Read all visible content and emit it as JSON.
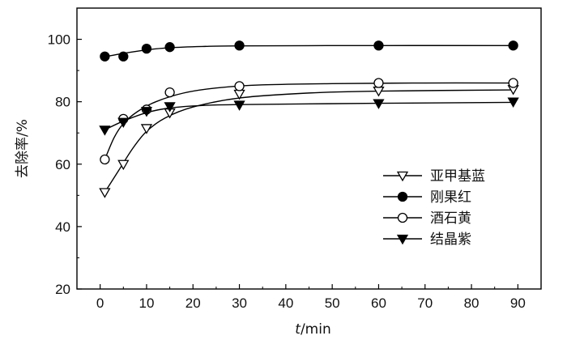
{
  "chart_data": {
    "type": "line",
    "xlabel": {
      "var": "t",
      "unit": "/min"
    },
    "ylabel": "去除率/%",
    "xlim": [
      -5,
      95
    ],
    "ylim": [
      20,
      110
    ],
    "xticks": [
      0,
      10,
      20,
      30,
      40,
      50,
      60,
      70,
      80,
      90
    ],
    "yticks": [
      20,
      40,
      60,
      80,
      100
    ],
    "grid": false,
    "legend_position": "center-right",
    "series": [
      {
        "name": "亚甲基蓝",
        "marker": "triangle-down-open",
        "x": [
          1,
          5,
          10,
          15,
          30,
          60,
          89
        ],
        "y": [
          51,
          60,
          71.5,
          76.5,
          82.5,
          83.5,
          84
        ],
        "fit": [
          [
            1,
            51
          ],
          [
            4,
            58
          ],
          [
            7,
            65
          ],
          [
            10,
            70.5
          ],
          [
            14,
            74.8
          ],
          [
            20,
            78.3
          ],
          [
            30,
            81.2
          ],
          [
            45,
            82.8
          ],
          [
            60,
            83.4
          ],
          [
            89,
            83.8
          ]
        ]
      },
      {
        "name": "刚果红",
        "marker": "circle-filled",
        "x": [
          1,
          5,
          10,
          15,
          30,
          60,
          89
        ],
        "y": [
          94.5,
          94.5,
          97,
          97.5,
          98,
          98,
          98
        ],
        "fit": [
          [
            1,
            94.4
          ],
          [
            5,
            95.5
          ],
          [
            10,
            96.6
          ],
          [
            15,
            97.3
          ],
          [
            22,
            97.7
          ],
          [
            30,
            97.9
          ],
          [
            60,
            98
          ],
          [
            89,
            98
          ]
        ]
      },
      {
        "name": "酒石黄",
        "marker": "circle-open",
        "x": [
          1,
          5,
          10,
          15,
          30,
          60,
          89
        ],
        "y": [
          61.5,
          74.5,
          77.5,
          83,
          85,
          86,
          86
        ],
        "fit": [
          [
            1,
            61.5
          ],
          [
            3,
            68.5
          ],
          [
            5,
            73
          ],
          [
            8,
            76.8
          ],
          [
            12,
            80
          ],
          [
            18,
            82.8
          ],
          [
            25,
            84.4
          ],
          [
            35,
            85.4
          ],
          [
            50,
            85.8
          ],
          [
            70,
            86
          ],
          [
            89,
            86
          ]
        ]
      },
      {
        "name": "结晶紫",
        "marker": "triangle-down-filled",
        "x": [
          1,
          5,
          10,
          15,
          30,
          60,
          89
        ],
        "y": [
          71,
          73.5,
          77,
          78.5,
          79,
          79.5,
          80
        ],
        "fit": [
          [
            1,
            71
          ],
          [
            5,
            73.8
          ],
          [
            10,
            76.5
          ],
          [
            15,
            78
          ],
          [
            22,
            78.8
          ],
          [
            30,
            79.1
          ],
          [
            60,
            79.5
          ],
          [
            89,
            79.8
          ]
        ]
      }
    ]
  }
}
